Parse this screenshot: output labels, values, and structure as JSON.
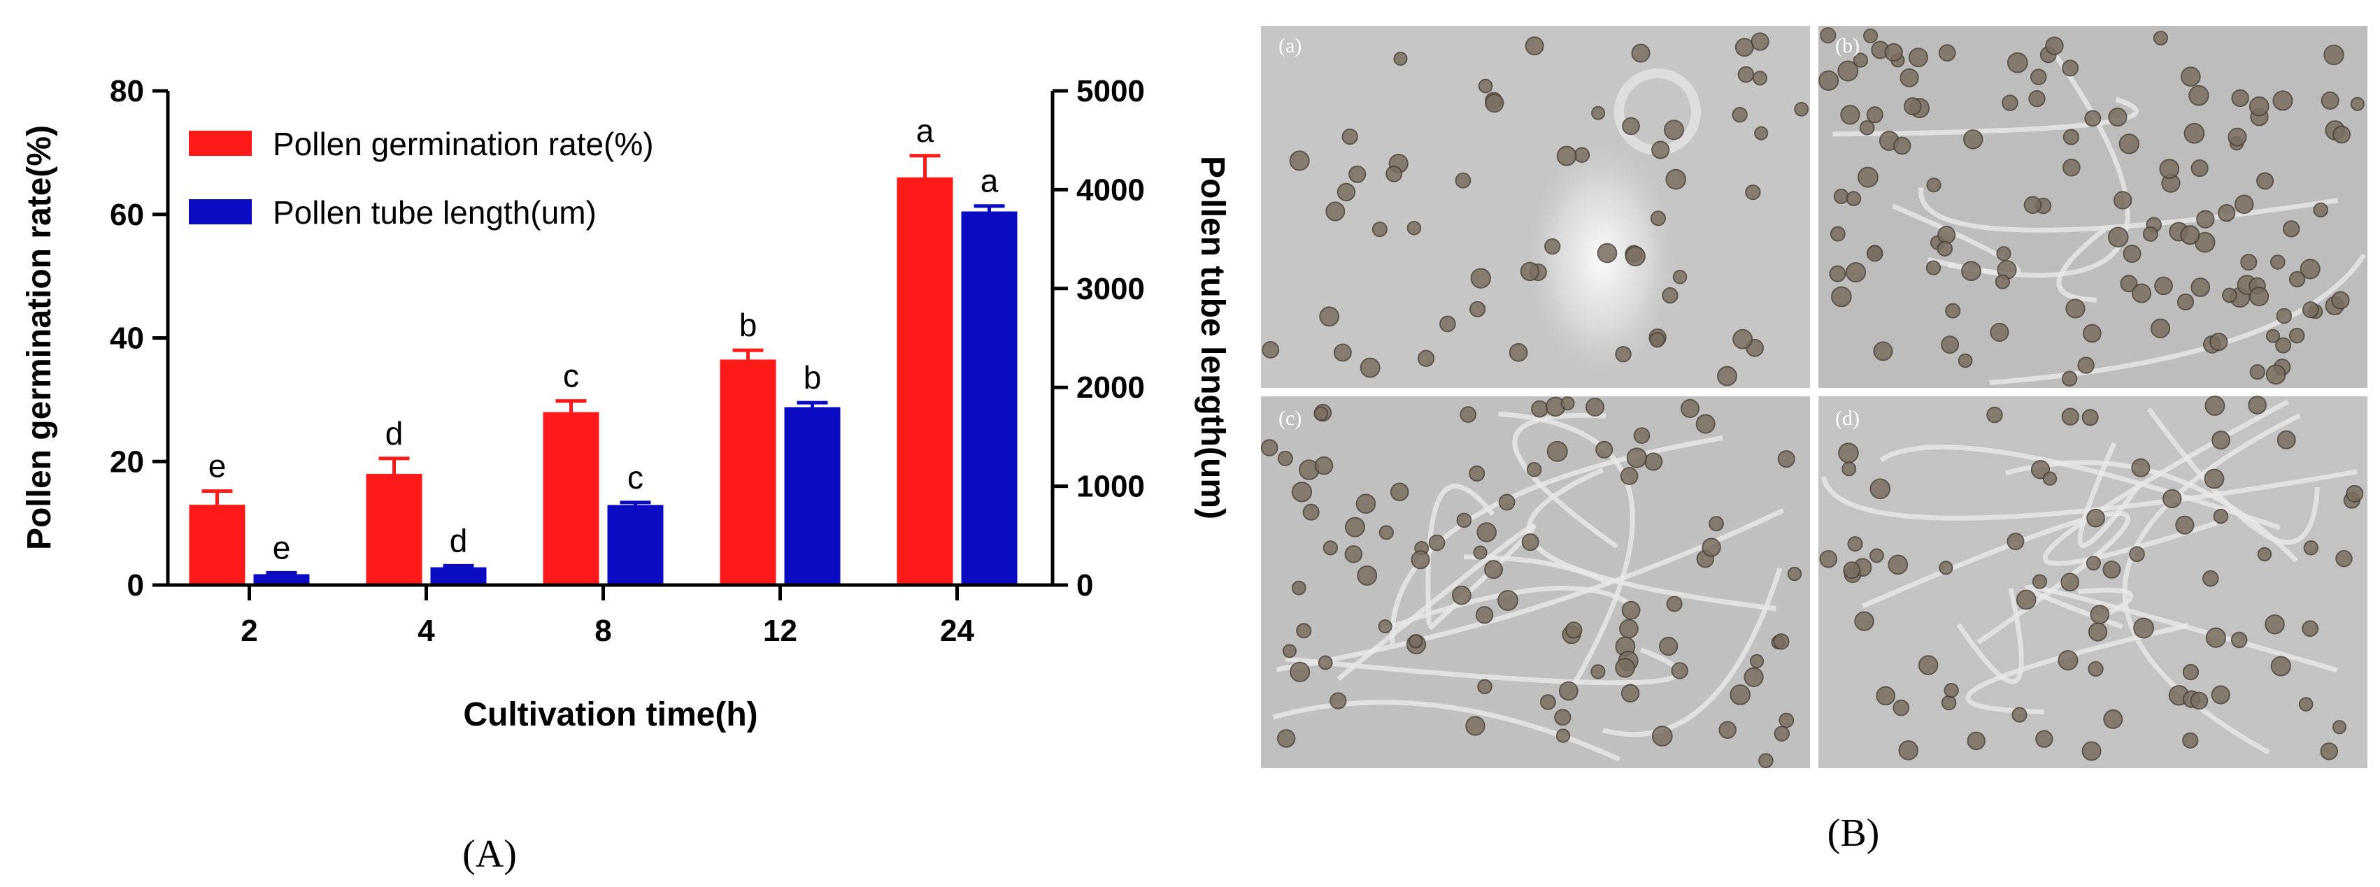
{
  "chart_data": {
    "type": "bar",
    "categories": [
      "2",
      "4",
      "8",
      "12",
      "24"
    ],
    "xlabel": "Cultivation time(h)",
    "ylabel_left": "Pollen germination rate(%)",
    "ylabel_right": "Pollen tube length(um)",
    "ylim_left": [
      0,
      80
    ],
    "ylim_right": [
      0,
      5000
    ],
    "yticks_left": [
      "0",
      "20",
      "40",
      "60",
      "80"
    ],
    "yticks_right": [
      "0",
      "1000",
      "2000",
      "3000",
      "4000",
      "5000"
    ],
    "legend_position": "top-left",
    "series": [
      {
        "name": "Pollen germination rate(%)",
        "axis": "left",
        "color": "#ff1a1a",
        "values": [
          13,
          18,
          28,
          36.5,
          66
        ],
        "errors": [
          2.2,
          2.5,
          1.8,
          1.5,
          3.5
        ],
        "labels": [
          "e",
          "d",
          "c",
          "b",
          "a"
        ]
      },
      {
        "name": "Pollen tube length(um)",
        "axis": "right",
        "color": "#0b0bc4",
        "values": [
          110,
          180,
          810,
          1800,
          3780
        ],
        "errors": [
          15,
          15,
          25,
          45,
          55
        ],
        "labels": [
          "e",
          "d",
          "c",
          "b",
          "a"
        ]
      }
    ]
  },
  "panel_labels": {
    "a": "(A)",
    "b": "(B)"
  },
  "micrographs": [
    {
      "label": "(a)"
    },
    {
      "label": "(b)"
    },
    {
      "label": "(c)"
    },
    {
      "label": "(d)"
    }
  ]
}
